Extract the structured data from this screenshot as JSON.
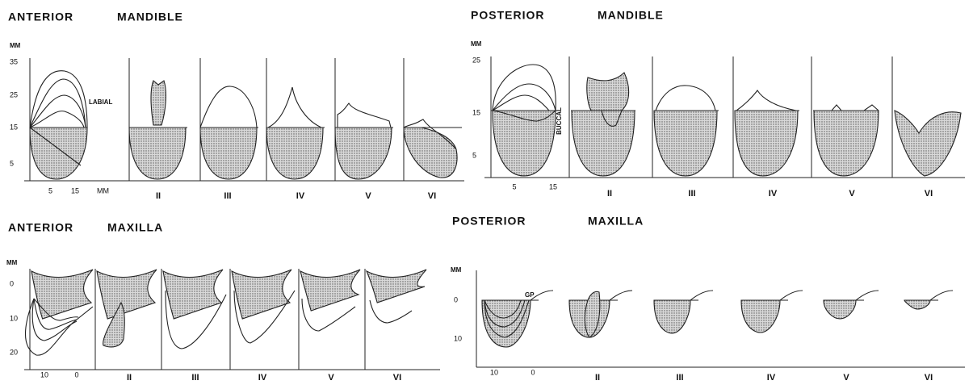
{
  "anterior_mandible": {
    "title": [
      "ANTERIOR",
      "MANDIBLE"
    ],
    "unit": "MM",
    "y_labels": [
      "35",
      "25",
      "15",
      "5"
    ],
    "x_labels": [
      "5",
      "15",
      "MM"
    ],
    "annotation": "LABIAL",
    "sections": [
      "II",
      "III",
      "IV",
      "V",
      "VI"
    ]
  },
  "posterior_mandible": {
    "title": [
      "POSTERIOR",
      "MANDIBLE"
    ],
    "unit": "MM",
    "y_labels": [
      "25",
      "15",
      "5"
    ],
    "x_labels": [
      "5",
      "15"
    ],
    "annotation": "BUCCAL",
    "sections": [
      "II",
      "III",
      "IV",
      "V",
      "VI"
    ]
  },
  "anterior_maxilla": {
    "title": [
      "ANTERIOR",
      "MAXILLA"
    ],
    "unit": "MM",
    "y_labels": [
      "0",
      "10",
      "20"
    ],
    "x_labels": [
      "10",
      "0"
    ],
    "sections": [
      "II",
      "III",
      "IV",
      "V",
      "VI"
    ]
  },
  "posterior_maxilla": {
    "title": [
      "POSTERIOR",
      "MAXILLA"
    ],
    "unit": "MM",
    "y_labels": [
      "0",
      "10"
    ],
    "x_labels": [
      "10",
      "0"
    ],
    "annotation": "GP",
    "sections": [
      "II",
      "III",
      "IV",
      "V",
      "VI"
    ]
  }
}
